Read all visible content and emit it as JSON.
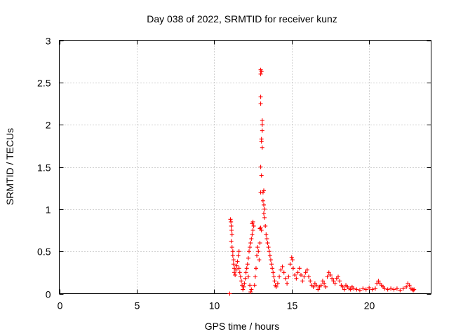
{
  "chart_data": {
    "type": "scatter",
    "title": "Day 038 of 2022, SRMTID for receiver kunz",
    "xlabel": "GPS time / hours",
    "ylabel": "SRMTID / TECUs",
    "xlim": [
      0,
      24
    ],
    "ylim": [
      0,
      3
    ],
    "xticks": [
      0,
      5,
      10,
      15,
      20
    ],
    "yticks": [
      0,
      0.5,
      1,
      1.5,
      2,
      2.5,
      3
    ],
    "xtick_labels": [
      "0",
      "5",
      "10",
      "15",
      "20"
    ],
    "ytick_labels": [
      "0",
      "0.5",
      "1",
      "1.5",
      "2",
      "2.5",
      "3"
    ],
    "grid": true,
    "marker": "+",
    "color": "#ff0000",
    "series": [
      {
        "name": "SRMTID",
        "points": [
          [
            11.0,
            0.0
          ],
          [
            11.05,
            0.88
          ],
          [
            11.08,
            0.85
          ],
          [
            11.1,
            0.8
          ],
          [
            11.12,
            0.75
          ],
          [
            11.15,
            0.7
          ],
          [
            11.1,
            0.62
          ],
          [
            11.15,
            0.55
          ],
          [
            11.2,
            0.5
          ],
          [
            11.2,
            0.45
          ],
          [
            11.25,
            0.4
          ],
          [
            11.25,
            0.35
          ],
          [
            11.3,
            0.3
          ],
          [
            11.3,
            0.25
          ],
          [
            11.35,
            0.22
          ],
          [
            11.4,
            0.28
          ],
          [
            11.45,
            0.33
          ],
          [
            11.5,
            0.38
          ],
          [
            11.55,
            0.45
          ],
          [
            11.6,
            0.5
          ],
          [
            11.6,
            0.3
          ],
          [
            11.65,
            0.25
          ],
          [
            11.7,
            0.2
          ],
          [
            11.75,
            0.15
          ],
          [
            11.8,
            0.1
          ],
          [
            11.85,
            0.05
          ],
          [
            11.9,
            0.08
          ],
          [
            11.95,
            0.12
          ],
          [
            12.0,
            0.18
          ],
          [
            12.05,
            0.25
          ],
          [
            12.1,
            0.3
          ],
          [
            12.15,
            0.35
          ],
          [
            12.2,
            0.42
          ],
          [
            12.25,
            0.5
          ],
          [
            12.3,
            0.55
          ],
          [
            12.35,
            0.6
          ],
          [
            12.4,
            0.65
          ],
          [
            12.45,
            0.7
          ],
          [
            12.5,
            0.75
          ],
          [
            12.55,
            0.8
          ],
          [
            12.5,
            0.85
          ],
          [
            12.45,
            0.83
          ],
          [
            12.2,
            0.2
          ],
          [
            12.3,
            0.1
          ],
          [
            12.35,
            0.02
          ],
          [
            12.4,
            0.05
          ],
          [
            12.6,
            0.1
          ],
          [
            12.65,
            0.2
          ],
          [
            12.7,
            0.3
          ],
          [
            12.75,
            0.45
          ],
          [
            12.8,
            0.55
          ],
          [
            12.85,
            0.5
          ],
          [
            12.9,
            0.4
          ],
          [
            12.95,
            0.6
          ],
          [
            12.95,
            0.77
          ],
          [
            13.0,
            0.78
          ],
          [
            13.05,
            0.75
          ],
          [
            13.0,
            1.2
          ],
          [
            13.05,
            1.4
          ],
          [
            13.0,
            1.5
          ],
          [
            13.1,
            1.73
          ],
          [
            13.05,
            1.8
          ],
          [
            13.05,
            1.83
          ],
          [
            13.1,
            1.93
          ],
          [
            13.1,
            2.0
          ],
          [
            13.1,
            2.05
          ],
          [
            13.0,
            2.25
          ],
          [
            13.0,
            2.33
          ],
          [
            13.0,
            2.6
          ],
          [
            13.05,
            2.63
          ],
          [
            13.0,
            2.65
          ],
          [
            13.15,
            1.2
          ],
          [
            13.2,
            1.22
          ],
          [
            13.15,
            1.1
          ],
          [
            13.2,
            1.05
          ],
          [
            13.25,
            1.0
          ],
          [
            13.2,
            0.95
          ],
          [
            13.25,
            0.9
          ],
          [
            13.3,
            0.8
          ],
          [
            13.35,
            0.7
          ],
          [
            13.4,
            0.65
          ],
          [
            13.45,
            0.6
          ],
          [
            13.5,
            0.55
          ],
          [
            13.55,
            0.5
          ],
          [
            13.6,
            0.45
          ],
          [
            13.65,
            0.4
          ],
          [
            13.7,
            0.35
          ],
          [
            13.75,
            0.3
          ],
          [
            13.8,
            0.25
          ],
          [
            13.85,
            0.2
          ],
          [
            13.9,
            0.15
          ],
          [
            13.95,
            0.1
          ],
          [
            14.0,
            0.08
          ],
          [
            14.1,
            0.12
          ],
          [
            14.2,
            0.2
          ],
          [
            14.3,
            0.28
          ],
          [
            14.4,
            0.32
          ],
          [
            14.5,
            0.25
          ],
          [
            14.6,
            0.18
          ],
          [
            14.7,
            0.12
          ],
          [
            14.8,
            0.2
          ],
          [
            14.9,
            0.35
          ],
          [
            15.0,
            0.43
          ],
          [
            15.05,
            0.4
          ],
          [
            15.1,
            0.3
          ],
          [
            15.2,
            0.22
          ],
          [
            15.3,
            0.18
          ],
          [
            15.4,
            0.25
          ],
          [
            15.5,
            0.3
          ],
          [
            15.6,
            0.22
          ],
          [
            15.7,
            0.15
          ],
          [
            15.8,
            0.2
          ],
          [
            15.9,
            0.25
          ],
          [
            16.0,
            0.28
          ],
          [
            16.1,
            0.2
          ],
          [
            16.2,
            0.15
          ],
          [
            16.3,
            0.1
          ],
          [
            16.4,
            0.08
          ],
          [
            16.5,
            0.12
          ],
          [
            16.6,
            0.1
          ],
          [
            16.7,
            0.05
          ],
          [
            16.8,
            0.08
          ],
          [
            16.9,
            0.1
          ],
          [
            17.0,
            0.15
          ],
          [
            17.1,
            0.12
          ],
          [
            17.2,
            0.08
          ],
          [
            17.3,
            0.2
          ],
          [
            17.4,
            0.25
          ],
          [
            17.5,
            0.22
          ],
          [
            17.6,
            0.18
          ],
          [
            17.7,
            0.15
          ],
          [
            17.8,
            0.12
          ],
          [
            17.9,
            0.18
          ],
          [
            18.0,
            0.2
          ],
          [
            18.1,
            0.15
          ],
          [
            18.2,
            0.1
          ],
          [
            18.3,
            0.08
          ],
          [
            18.4,
            0.05
          ],
          [
            18.5,
            0.1
          ],
          [
            18.6,
            0.08
          ],
          [
            18.7,
            0.06
          ],
          [
            18.8,
            0.05
          ],
          [
            18.9,
            0.08
          ],
          [
            19.0,
            0.06
          ],
          [
            19.2,
            0.05
          ],
          [
            19.4,
            0.04
          ],
          [
            19.6,
            0.06
          ],
          [
            19.8,
            0.05
          ],
          [
            20.0,
            0.07
          ],
          [
            20.2,
            0.05
          ],
          [
            20.4,
            0.06
          ],
          [
            20.5,
            0.12
          ],
          [
            20.6,
            0.15
          ],
          [
            20.7,
            0.12
          ],
          [
            20.8,
            0.1
          ],
          [
            20.9,
            0.08
          ],
          [
            21.0,
            0.06
          ],
          [
            21.2,
            0.05
          ],
          [
            21.4,
            0.06
          ],
          [
            21.6,
            0.05
          ],
          [
            21.8,
            0.06
          ],
          [
            22.0,
            0.04
          ],
          [
            22.2,
            0.06
          ],
          [
            22.4,
            0.08
          ],
          [
            22.5,
            0.12
          ],
          [
            22.6,
            0.1
          ],
          [
            22.7,
            0.06
          ],
          [
            22.8,
            0.05
          ],
          [
            22.85,
            0.04
          ],
          [
            22.9,
            0.05
          ]
        ]
      }
    ]
  }
}
